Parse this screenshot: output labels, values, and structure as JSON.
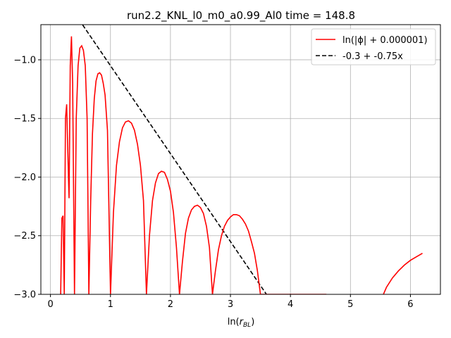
{
  "chart_data": {
    "type": "line",
    "title": "run2.2_KNL_l0_m0_a0.99_Al0 time = 148.8",
    "xlabel": "ln(r_BL)",
    "ylabel": "",
    "xlim": [
      -0.16,
      6.5
    ],
    "ylim": [
      -3.0,
      -0.7
    ],
    "xticks": [
      0,
      1,
      2,
      3,
      4,
      5,
      6
    ],
    "xtick_labels": [
      "0",
      "1",
      "2",
      "3",
      "4",
      "5",
      "6"
    ],
    "yticks": [
      -3.0,
      -2.5,
      -2.0,
      -1.5,
      -1.0
    ],
    "ytick_labels": [
      "−3.0",
      "−2.5",
      "−2.0",
      "−1.5",
      "−1.0"
    ],
    "grid": true,
    "legend_position": "top-right",
    "colors": {
      "series_main": "#ff0000",
      "series_fit": "#000000",
      "grid": "#b0b0b0"
    },
    "series": [
      {
        "name": "ln(|ϕ| + 0.000001)",
        "style": "solid",
        "x": [
          0.17,
          0.19,
          0.21,
          0.23,
          0.25,
          0.27,
          0.29,
          0.31,
          0.33,
          0.35,
          0.37,
          0.4,
          0.43,
          0.46,
          0.49,
          0.52,
          0.55,
          0.58,
          0.61,
          0.64,
          0.67,
          0.7,
          0.73,
          0.76,
          0.79,
          0.82,
          0.85,
          0.88,
          0.91,
          0.95,
          1.0,
          1.05,
          1.1,
          1.15,
          1.2,
          1.25,
          1.3,
          1.35,
          1.4,
          1.45,
          1.5,
          1.55,
          1.6,
          1.65,
          1.7,
          1.75,
          1.8,
          1.85,
          1.9,
          1.95,
          2.0,
          2.05,
          2.1,
          2.15,
          2.2,
          2.25,
          2.3,
          2.35,
          2.4,
          2.45,
          2.5,
          2.55,
          2.6,
          2.65,
          2.7,
          2.75,
          2.8,
          2.85,
          2.9,
          2.95,
          3.0,
          3.05,
          3.1,
          3.15,
          3.2,
          3.25,
          3.3,
          3.35,
          3.4,
          3.45,
          3.5,
          3.55,
          3.6,
          3.65,
          3.7,
          3.75,
          3.8,
          3.85,
          3.9,
          3.95,
          4.0,
          4.05,
          4.1,
          4.15,
          4.2,
          4.25,
          4.3,
          4.35,
          4.4,
          4.45,
          4.5,
          4.55,
          4.6
        ],
        "y": [
          -3.0,
          -2.35,
          -2.33,
          -3.0,
          -1.5,
          -1.38,
          -1.8,
          -2.18,
          -1.05,
          -0.8,
          -1.2,
          -3.0,
          -1.5,
          -1.05,
          -0.9,
          -0.88,
          -0.92,
          -1.05,
          -1.5,
          -3.0,
          -2.2,
          -1.63,
          -1.33,
          -1.18,
          -1.12,
          -1.11,
          -1.13,
          -1.2,
          -1.3,
          -1.6,
          -3.0,
          -2.3,
          -1.9,
          -1.7,
          -1.58,
          -1.53,
          -1.52,
          -1.54,
          -1.6,
          -1.72,
          -1.9,
          -2.2,
          -3.0,
          -2.5,
          -2.2,
          -2.05,
          -1.97,
          -1.95,
          -1.96,
          -2.02,
          -2.12,
          -2.3,
          -2.6,
          -3.0,
          -2.72,
          -2.48,
          -2.35,
          -2.28,
          -2.25,
          -2.24,
          -2.26,
          -2.31,
          -2.42,
          -2.6,
          -3.0,
          -2.8,
          -2.62,
          -2.5,
          -2.42,
          -2.37,
          -2.34,
          -2.32,
          -2.32,
          -2.33,
          -2.36,
          -2.4,
          -2.46,
          -2.55,
          -2.65,
          -2.8,
          -3.0,
          -3.0,
          -3.0,
          -3.0,
          -3.0,
          -3.0,
          -3.0,
          -3.0,
          -3.0,
          -3.0,
          -3.0,
          -3.0,
          -3.0,
          -3.0,
          -3.0,
          -3.0,
          -3.0,
          -3.0,
          -3.0,
          -3.0,
          -3.0,
          -3.0,
          -3.0
        ],
        "x_tail": [
          5.55,
          5.6,
          5.7,
          5.8,
          5.9,
          6.0,
          6.1,
          6.2
        ],
        "y_tail": [
          -3.0,
          -2.94,
          -2.86,
          -2.8,
          -2.75,
          -2.71,
          -2.68,
          -2.65
        ]
      },
      {
        "name": "-0.3 + -0.75x",
        "style": "dashed",
        "intercept": -0.3,
        "slope": -0.75
      }
    ]
  }
}
